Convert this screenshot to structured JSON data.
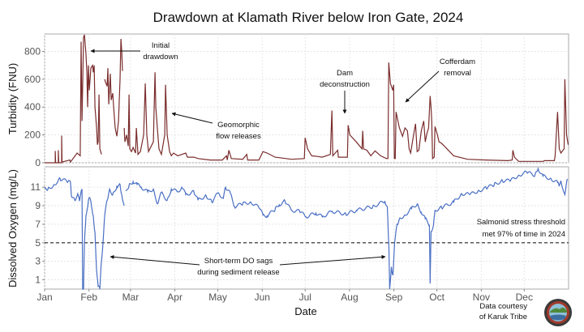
{
  "chart_data": [
    {
      "type": "line",
      "title": "Drawdown at Klamath River below Iron Gate, 2024",
      "ylabel": "Turbidity (FNU)",
      "xlabel": "",
      "ylim": [
        0,
        925
      ],
      "xlim": [
        0,
        366
      ],
      "yticks": [
        0,
        200,
        400,
        600,
        800
      ],
      "color": "#7b2d2d",
      "grid": true,
      "annotations": [
        "Initial",
        "drawdown",
        "Geomorphic",
        "flow releases",
        "Dam",
        "deconstruction",
        "Cofferdam",
        "removal"
      ],
      "x_units": "day of year",
      "points": [
        [
          0,
          0
        ],
        [
          7.4,
          0
        ],
        [
          7.4,
          85
        ],
        [
          7.7,
          0
        ],
        [
          9.6,
          0
        ],
        [
          9.6,
          90
        ],
        [
          9.9,
          0
        ],
        [
          11.9,
          0
        ],
        [
          11.9,
          195
        ],
        [
          12.2,
          5
        ],
        [
          17.6,
          20
        ],
        [
          18.1,
          5
        ],
        [
          22.7,
          70
        ],
        [
          24.9,
          50
        ],
        [
          25.5,
          870
        ],
        [
          26.1,
          300
        ],
        [
          27.2,
          900
        ],
        [
          27.8,
          920
        ],
        [
          28.9,
          780
        ],
        [
          29.5,
          650
        ],
        [
          30,
          400
        ],
        [
          30.6,
          700
        ],
        [
          31.2,
          520
        ],
        [
          32.3,
          680
        ],
        [
          33.5,
          700
        ],
        [
          34,
          650
        ],
        [
          34.6,
          700
        ],
        [
          35.2,
          400
        ],
        [
          36.3,
          250
        ],
        [
          36.9,
          130
        ],
        [
          37.4,
          150
        ],
        [
          38,
          490
        ],
        [
          38.6,
          100
        ],
        [
          39.7,
          60
        ],
        [
          null,
          null
        ],
        [
          42,
          600
        ],
        [
          42.5,
          580
        ],
        [
          43.7,
          550
        ],
        [
          44.2,
          680
        ],
        [
          44.8,
          420
        ],
        [
          45.9,
          640
        ],
        [
          46.5,
          450
        ],
        [
          47.6,
          500
        ],
        [
          48.2,
          400
        ],
        [
          49.3,
          250
        ],
        [
          50.5,
          190
        ],
        [
          51.6,
          300
        ],
        [
          52.7,
          600
        ],
        [
          53.3,
          890
        ],
        [
          53.9,
          800
        ],
        [
          54.4,
          660
        ],
        [
          null,
          null
        ],
        [
          55.6,
          250
        ],
        [
          56.1,
          150
        ],
        [
          57.3,
          200
        ],
        [
          58.4,
          120
        ],
        [
          59,
          490
        ],
        [
          59.5,
          100
        ],
        [
          60.7,
          80
        ],
        [
          61.8,
          110
        ],
        [
          63.5,
          70
        ],
        [
          64.1,
          250
        ],
        [
          65.2,
          60
        ],
        [
          66.9,
          80
        ],
        [
          69.2,
          200
        ],
        [
          70.3,
          570
        ],
        [
          71.4,
          200
        ],
        [
          72.6,
          80
        ],
        [
          76,
          150
        ],
        [
          77.1,
          650
        ],
        [
          77.7,
          400
        ],
        [
          78.8,
          240
        ],
        [
          79.9,
          100
        ],
        [
          81.6,
          60
        ],
        [
          83.9,
          200
        ],
        [
          84.5,
          560
        ],
        [
          85.6,
          200
        ],
        [
          87.3,
          80
        ],
        [
          88.5,
          50
        ],
        [
          90.1,
          70
        ],
        [
          93,
          50
        ],
        [
          98.6,
          70
        ],
        [
          99.8,
          40
        ],
        [
          104.3,
          40
        ],
        [
          107.2,
          30
        ],
        [
          115.7,
          20
        ],
        [
          124.2,
          20
        ],
        [
          127,
          50
        ],
        [
          127.6,
          20
        ],
        [
          128.7,
          90
        ],
        [
          130.4,
          30
        ],
        [
          138.4,
          25
        ],
        [
          141.2,
          60
        ],
        [
          141.8,
          20
        ],
        [
          149.7,
          20
        ],
        [
          152.5,
          80
        ],
        [
          155.4,
          70
        ],
        [
          161,
          40
        ],
        [
          172.4,
          25
        ],
        [
          181.4,
          30
        ],
        [
          182,
          180
        ],
        [
          183.7,
          100
        ],
        [
          186.5,
          50
        ],
        [
          191.1,
          45
        ],
        [
          193.9,
          40
        ],
        [
          199.6,
          60
        ],
        [
          200.7,
          375
        ],
        [
          201.3,
          50
        ],
        [
          204.7,
          90
        ],
        [
          205.2,
          40
        ],
        [
          211.5,
          40
        ],
        [
          212,
          270
        ],
        [
          213.2,
          200
        ],
        [
          217.7,
          150
        ],
        [
          221.7,
          100
        ],
        [
          222.2,
          230
        ],
        [
          222.8,
          100
        ],
        [
          225.1,
          90
        ],
        [
          227.9,
          50
        ],
        [
          230.8,
          85
        ],
        [
          234.7,
          50
        ],
        [
          238.7,
          30
        ],
        [
          239.8,
          30
        ],
        [
          240.4,
          720
        ],
        [
          241.5,
          570
        ],
        [
          243.2,
          520
        ],
        [
          243.8,
          560
        ],
        [
          244.3,
          30
        ],
        [
          244.9,
          30
        ],
        [
          245.5,
          365
        ],
        [
          247.8,
          250
        ],
        [
          250,
          190
        ],
        [
          251.7,
          250
        ],
        [
          253.4,
          230
        ],
        [
          254.6,
          100
        ],
        [
          255.7,
          70
        ],
        [
          257.4,
          180
        ],
        [
          259.1,
          280
        ],
        [
          260.2,
          80
        ],
        [
          261.4,
          90
        ],
        [
          263.1,
          230
        ],
        [
          264.8,
          300
        ],
        [
          265.9,
          150
        ],
        [
          267,
          210
        ],
        [
          268.2,
          250
        ],
        [
          269.3,
          480
        ],
        [
          269.9,
          400
        ],
        [
          270.4,
          300
        ],
        [
          271,
          30
        ],
        [
          272.1,
          40
        ],
        [
          272.7,
          260
        ],
        [
          274.4,
          200
        ],
        [
          275.5,
          150
        ],
        [
          277.2,
          140
        ],
        [
          280.1,
          110
        ],
        [
          285.7,
          50
        ],
        [
          295.4,
          25
        ],
        [
          308.4,
          20
        ],
        [
          323.7,
          15
        ],
        [
          326.6,
          20
        ],
        [
          327.1,
          90
        ],
        [
          328.2,
          40
        ],
        [
          331.1,
          10
        ],
        [
          348.1,
          10
        ],
        [
          349.3,
          15
        ],
        [
          356.1,
          15
        ],
        [
          356.6,
          50
        ],
        [
          358.3,
          365
        ],
        [
          359.5,
          100
        ],
        [
          360.6,
          70
        ],
        [
          362.9,
          100
        ],
        [
          363.4,
          600
        ],
        [
          364.6,
          200
        ],
        [
          365.7,
          130
        ]
      ]
    },
    {
      "type": "line",
      "ylabel": "Dissolved Oxygen (mg/L)",
      "xlabel": "Date",
      "ylim": [
        0,
        13.2
      ],
      "xlim": [
        0,
        366
      ],
      "yticks": [
        1,
        3,
        5,
        7,
        9,
        11
      ],
      "xticks": [
        {
          "label": "Jan",
          "day": 0
        },
        {
          "label": "Feb",
          "day": 31
        },
        {
          "label": "Mar",
          "day": 60
        },
        {
          "label": "Apr",
          "day": 91
        },
        {
          "label": "May",
          "day": 121
        },
        {
          "label": "Jun",
          "day": 152
        },
        {
          "label": "Jul",
          "day": 182
        },
        {
          "label": "Aug",
          "day": 213
        },
        {
          "label": "Sep",
          "day": 244
        },
        {
          "label": "Oct",
          "day": 274
        },
        {
          "label": "Nov",
          "day": 305
        },
        {
          "label": "Dec",
          "day": 335
        }
      ],
      "color": "#4a6fc4",
      "grid": true,
      "threshold": {
        "value": 5,
        "style": "dashed"
      },
      "annotations": [
        "Short-term DO sags",
        "during sediment release",
        "Salmonid stress threshold",
        "met 97% of time in 2024"
      ],
      "x_units": "day of year",
      "points": [
        [
          0,
          11
        ],
        [
          2.3,
          10.8
        ],
        [
          6.2,
          11.2
        ],
        [
          10.8,
          11.9
        ],
        [
          16.4,
          11.6
        ],
        [
          18.1,
          11.5
        ],
        [
          18.7,
          10.1
        ],
        [
          21,
          9.6
        ],
        [
          23.2,
          10.3
        ],
        [
          24.4,
          9.5
        ],
        [
          26.1,
          10.8
        ],
        [
          26.6,
          0
        ],
        [
          27.2,
          0
        ],
        [
          27.8,
          5
        ],
        [
          28.9,
          7.9
        ],
        [
          30.6,
          9.6
        ],
        [
          31.8,
          9.8
        ],
        [
          34,
          7.9
        ],
        [
          35.2,
          6.1
        ],
        [
          36.3,
          2
        ],
        [
          37.4,
          0.3
        ],
        [
          38.6,
          0
        ],
        [
          39.1,
          1.5
        ],
        [
          39.7,
          3
        ],
        [
          40.8,
          5
        ],
        [
          42,
          8
        ],
        [
          43.7,
          9.6
        ],
        [
          45.4,
          10.8
        ],
        [
          47.6,
          10.2
        ],
        [
          50.5,
          11.1
        ],
        [
          52.7,
          11.3
        ],
        [
          53.9,
          10.2
        ],
        [
          55.6,
          9
        ],
        [
          null,
          null
        ],
        [
          56.7,
          10.6
        ],
        [
          59,
          11.2
        ],
        [
          61.8,
          11.6
        ],
        [
          64.6,
          11.3
        ],
        [
          67.5,
          11
        ],
        [
          72,
          10.5
        ],
        [
          76,
          10.8
        ],
        [
          78.8,
          9.2
        ],
        [
          81.6,
          10.4
        ],
        [
          85.6,
          9.6
        ],
        [
          88.5,
          10.8
        ],
        [
          93,
          10.5
        ],
        [
          95.8,
          11
        ],
        [
          98.6,
          10.2
        ],
        [
          104.3,
          10.5
        ],
        [
          107.2,
          9.6
        ],
        [
          112.8,
          10.1
        ],
        [
          116.8,
          9.4
        ],
        [
          121.3,
          10.4
        ],
        [
          124.8,
          9.8
        ],
        [
          126.4,
          11
        ],
        [
          129.8,
          10.3
        ],
        [
          132.7,
          8.9
        ],
        [
          138.4,
          9.2
        ],
        [
          144,
          9.4
        ],
        [
          149.7,
          8.8
        ],
        [
          152.5,
          8
        ],
        [
          155.4,
          7.9
        ],
        [
          161,
          8.6
        ],
        [
          163.9,
          9.1
        ],
        [
          167.9,
          9.5
        ],
        [
          172.4,
          8.5
        ],
        [
          178.1,
          8.4
        ],
        [
          182.6,
          7.8
        ],
        [
          189.5,
          8.2
        ],
        [
          194,
          7.8
        ],
        [
          200.8,
          8.4
        ],
        [
          210.4,
          8.1
        ],
        [
          217.8,
          8.5
        ],
        [
          229.2,
          8.9
        ],
        [
          237.7,
          9.5
        ],
        [
          239.4,
          8.9
        ],
        [
          240.5,
          4.4
        ],
        [
          241,
          0
        ],
        [
          242.2,
          2.4
        ],
        [
          243.3,
          1.5
        ],
        [
          244.5,
          5
        ],
        [
          246.2,
          7
        ],
        [
          247.8,
          7.6
        ],
        [
          251.8,
          8
        ],
        [
          256.3,
          8.7
        ],
        [
          260.3,
          9.2
        ],
        [
          263.1,
          8.3
        ],
        [
          265.9,
          7.6
        ],
        [
          268.8,
          6.9
        ],
        [
          269.3,
          0.6
        ],
        [
          269.9,
          6.2
        ],
        [
          271.6,
          6.9
        ],
        [
          272.7,
          8.5
        ],
        [
          277.3,
          8.8
        ],
        [
          285.8,
          9.4
        ],
        [
          291.4,
          10.3
        ],
        [
          297.1,
          10.2
        ],
        [
          302.8,
          10.6
        ],
        [
          308.5,
          10.9
        ],
        [
          314.1,
          11.3
        ],
        [
          319.8,
          11.7
        ],
        [
          325.5,
          11.7
        ],
        [
          331.1,
          12.3
        ],
        [
          336.8,
          12.6
        ],
        [
          342.5,
          12.3
        ],
        [
          344.7,
          13
        ],
        [
          348.1,
          12.2
        ],
        [
          353.8,
          11.9
        ],
        [
          358.3,
          11.5
        ],
        [
          359.5,
          11.1
        ],
        [
          360.6,
          11.7
        ],
        [
          363.4,
          10.2
        ],
        [
          365.1,
          11.9
        ]
      ]
    }
  ],
  "credit": [
    "Data courtesy",
    "of Karuk Tribe"
  ],
  "logo": {
    "name": "Karuk Tribe seal"
  }
}
